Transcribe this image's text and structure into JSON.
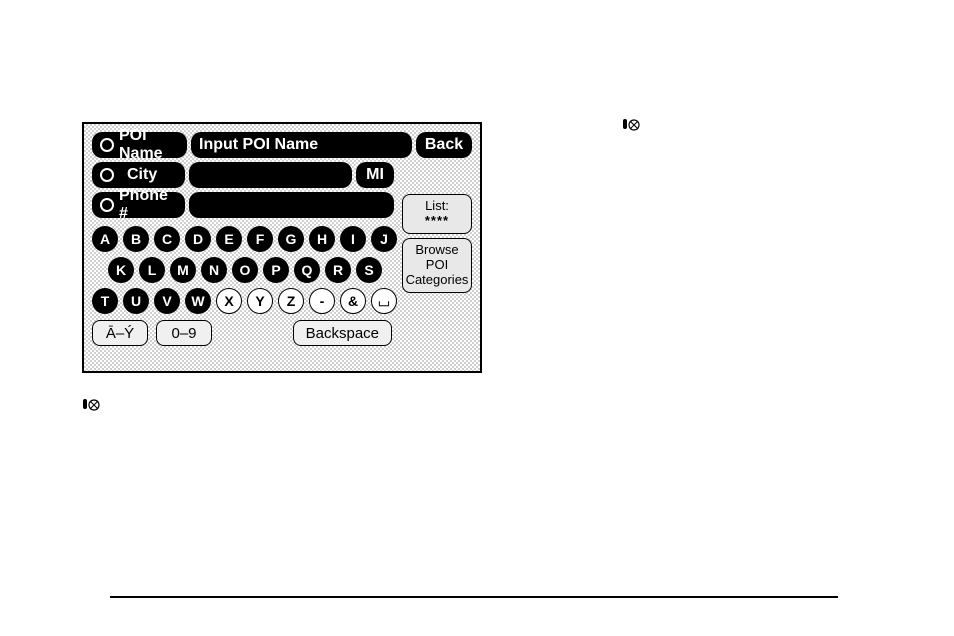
{
  "panel": {
    "background_pattern_color": "#d0d0d0",
    "border_color": "#000000"
  },
  "fields": {
    "poi": {
      "label": "POI Name",
      "placeholder": "Input POI Name",
      "value": ""
    },
    "city": {
      "label": "City",
      "value": "",
      "state": "MI"
    },
    "phone": {
      "label": "Phone #",
      "value": ""
    }
  },
  "back_label": "Back",
  "list_box": {
    "title": "List:",
    "count": "****"
  },
  "browse_box": {
    "line1": "Browse",
    "line2": "POI",
    "line3": "Categories"
  },
  "keyboard": {
    "row1": [
      "A",
      "B",
      "C",
      "D",
      "E",
      "F",
      "G",
      "H",
      "I",
      "J"
    ],
    "row2": [
      "K",
      "L",
      "M",
      "N",
      "O",
      "P",
      "Q",
      "R",
      "S"
    ],
    "row3": [
      "T",
      "U",
      "V",
      "W"
    ],
    "row3_outlined": [
      "X",
      "Y",
      "Z",
      "-",
      "&",
      "⌴"
    ],
    "mode_accents": "Ā–Ý",
    "mode_digits": "0–9",
    "backspace": "Backspace"
  },
  "colors": {
    "pill_bg": "#000000",
    "pill_fg": "#ffffff",
    "box_bg": "#e8e8e8",
    "box_border": "#000000"
  }
}
